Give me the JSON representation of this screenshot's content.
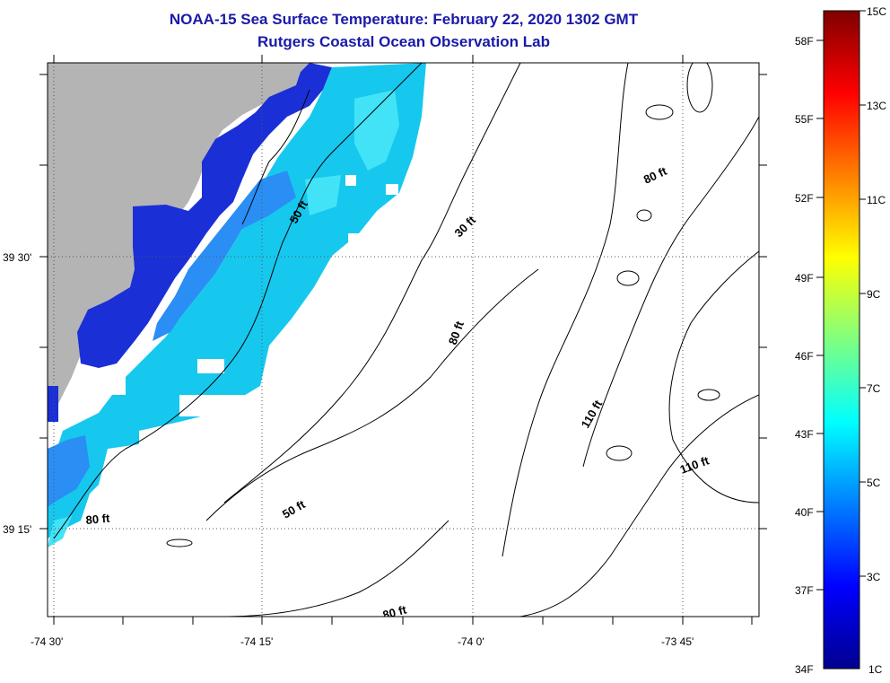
{
  "title": "NOAA-15 Sea Surface Temperature:  February 22, 2020 1302 GMT",
  "subtitle": "Rutgers Coastal Ocean Observation Lab",
  "x_ticks": [
    "-74 30'",
    "-74 15'",
    "-74 0'",
    "-73 45'"
  ],
  "y_ticks": [
    "39 30'",
    "39 15'"
  ],
  "contour_labels": [
    {
      "text": "50 ft"
    },
    {
      "text": "30 ft"
    },
    {
      "text": "80 ft"
    },
    {
      "text": "80 ft"
    },
    {
      "text": "110 ft"
    },
    {
      "text": "110 ft"
    },
    {
      "text": "80 ft"
    },
    {
      "text": "50 ft"
    },
    {
      "text": "80 ft"
    }
  ],
  "colorbar": {
    "celsius": [
      "15C",
      "13C",
      "11C",
      "9C",
      "7C",
      "5C",
      "3C",
      "1C"
    ],
    "fahrenheit": [
      "58F",
      "55F",
      "52F",
      "49F",
      "46F",
      "43F",
      "40F",
      "37F",
      "34F"
    ]
  },
  "colors": {
    "land": "#b4b4b4",
    "title": "#1a1aa8"
  },
  "sst_legend": {
    "min_C": 1,
    "max_C": 15,
    "min_F": 34,
    "max_F": 58
  }
}
